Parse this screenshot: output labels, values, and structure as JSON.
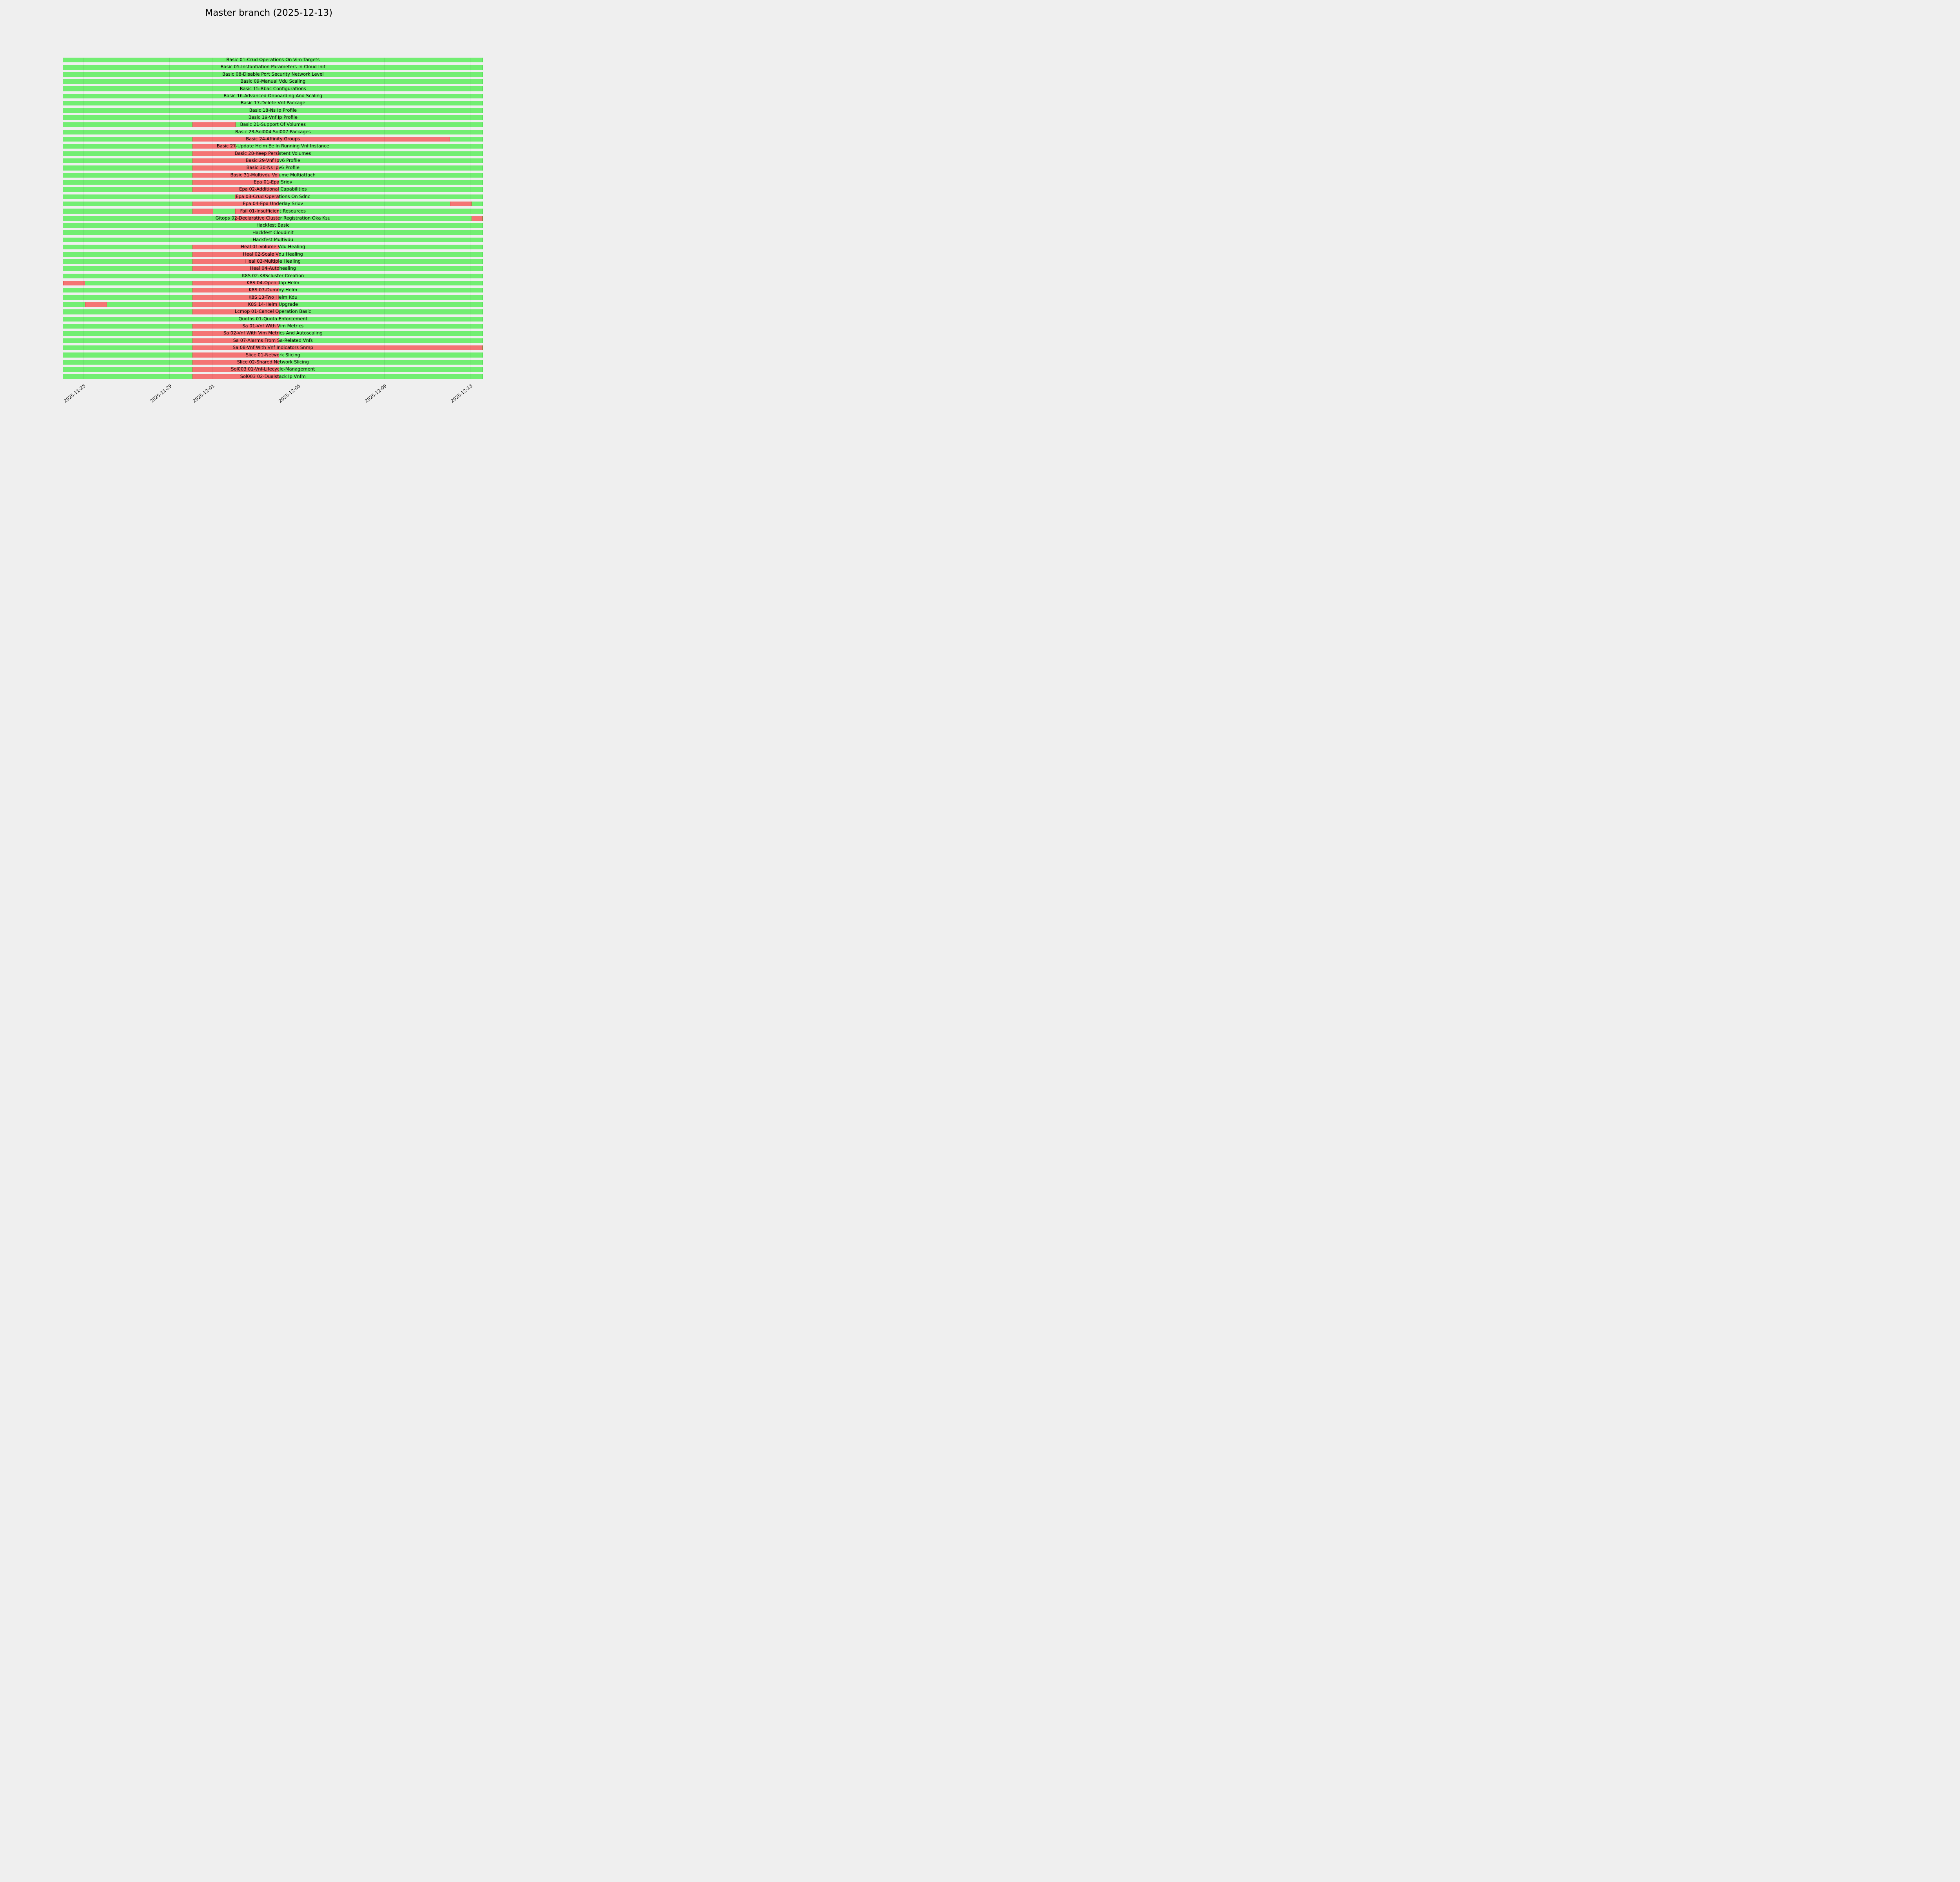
{
  "chart_data": {
    "type": "gantt",
    "title": "Master branch (2025-12-13)",
    "background": "#efefef",
    "legend": "none",
    "grid": "vertical ticks only",
    "colors": {
      "pass": "#72ee72",
      "fail": "#f47474"
    },
    "time_axis_note": "day offsets measured in days since 2025-11-24 00:00",
    "x_domain": [
      0.07,
      19.59
    ],
    "x_ticks": [
      {
        "day": 1,
        "label": "2025-11-25"
      },
      {
        "day": 5,
        "label": "2025-11-29"
      },
      {
        "day": 7,
        "label": "2025-12-01"
      },
      {
        "day": 11,
        "label": "2025-12-05"
      },
      {
        "day": 15,
        "label": "2025-12-09"
      },
      {
        "day": 19,
        "label": "2025-12-13"
      }
    ],
    "rows": [
      {
        "label": "Basic 01-Crud Operations On Vim Targets",
        "fail": []
      },
      {
        "label": "Basic 05-Instantiation Parameters In Cloud Init",
        "fail": []
      },
      {
        "label": "Basic 08-Disable Port Security Network Level",
        "fail": []
      },
      {
        "label": "Basic 09-Manual Vdu Scaling",
        "fail": []
      },
      {
        "label": "Basic 15-Rbac Configurations",
        "fail": []
      },
      {
        "label": "Basic 16-Advanced Onboarding And Scaling",
        "fail": []
      },
      {
        "label": "Basic 17-Delete Vnf Package",
        "fail": []
      },
      {
        "label": "Basic 18-Ns Ip Profile",
        "fail": []
      },
      {
        "label": "Basic 19-Vnf Ip Profile",
        "fail": []
      },
      {
        "label": "Basic 21-Support Of Volumes",
        "fail": [
          [
            6.09,
            8.09
          ]
        ]
      },
      {
        "label": "Basic 23-Sol004 Sol007 Packages",
        "fail": []
      },
      {
        "label": "Basic 24-Affinity Groups",
        "fail": [
          [
            6.09,
            18.07
          ]
        ]
      },
      {
        "label": "Basic 27-Update Helm Ee In Running Vnf Instance",
        "fail": [
          [
            6.09,
            8.09
          ]
        ]
      },
      {
        "label": "Basic 28-Keep Persistent Volumes",
        "fail": [
          [
            6.09,
            10.11
          ]
        ]
      },
      {
        "label": "Basic 29-Vnf Ipv6 Profile",
        "fail": [
          [
            6.09,
            10.11
          ]
        ]
      },
      {
        "label": "Basic 30-Ns Ipv6 Profile",
        "fail": [
          [
            6.09,
            10.11
          ]
        ]
      },
      {
        "label": "Basic 31-Multivdu Volume Multiattach",
        "fail": [
          [
            6.09,
            10.11
          ]
        ]
      },
      {
        "label": "Epa 01-Epa Sriov",
        "fail": [
          [
            6.09,
            10.11
          ]
        ]
      },
      {
        "label": "Epa 02-Additional Capabilities",
        "fail": [
          [
            6.09,
            10.11
          ]
        ]
      },
      {
        "label": "Epa 03-Crud Operations On Sdnc",
        "fail": [
          [
            8.08,
            10.11
          ]
        ]
      },
      {
        "label": "Epa 04-Epa Underlay Sriov",
        "fail": [
          [
            6.09,
            10.11
          ],
          [
            18.07,
            19.08
          ]
        ]
      },
      {
        "label": "Fail 01-Insufficient Resources",
        "fail": [
          [
            6.09,
            7.05
          ],
          [
            8.08,
            10.11
          ]
        ]
      },
      {
        "label": "Gitops 02-Declarative Cluster Registration Oka Ksu",
        "fail": [
          [
            8.08,
            10.11
          ],
          [
            19.08,
            19.59
          ]
        ]
      },
      {
        "label": "Hackfest Basic",
        "fail": []
      },
      {
        "label": "Hackfest Cloudinit",
        "fail": []
      },
      {
        "label": "Hackfest Multivdu",
        "fail": []
      },
      {
        "label": "Heal 01-Volume Vdu Healing",
        "fail": [
          [
            6.09,
            10.11
          ]
        ]
      },
      {
        "label": "Heal 02-Scale Vdu Healing",
        "fail": [
          [
            6.09,
            10.11
          ]
        ]
      },
      {
        "label": "Heal 03-Multiple Healing",
        "fail": [
          [
            6.09,
            10.11
          ]
        ]
      },
      {
        "label": "Heal 04-Autohealing",
        "fail": [
          [
            6.09,
            10.11
          ]
        ]
      },
      {
        "label": "K8S 02-K8Scluster Creation",
        "fail": []
      },
      {
        "label": "K8S 04-Openldap Helm",
        "fail": [
          [
            0.07,
            1.08
          ],
          [
            6.09,
            10.11
          ]
        ]
      },
      {
        "label": "K8S 07-Dummy Helm",
        "fail": [
          [
            6.09,
            10.11
          ]
        ]
      },
      {
        "label": "K8S 13-Two Helm Kdu",
        "fail": [
          [
            6.09,
            10.11
          ]
        ]
      },
      {
        "label": "K8S 14-Helm Upgrade",
        "fail": [
          [
            1.08,
            2.1
          ],
          [
            6.09,
            10.11
          ]
        ]
      },
      {
        "label": "Lcmop 01-Cancel Operation Basic",
        "fail": [
          [
            6.09,
            10.11
          ]
        ]
      },
      {
        "label": "Quotas 01-Quota Enforcement",
        "fail": []
      },
      {
        "label": "Sa 01-Vnf With Vim Metrics",
        "fail": [
          [
            6.09,
            10.11
          ]
        ]
      },
      {
        "label": "Sa 02-Vnf With Vim Metrics And Autoscaling",
        "fail": [
          [
            6.09,
            10.11
          ]
        ]
      },
      {
        "label": "Sa 07-Alarms From Sa-Related Vnfs",
        "fail": [
          [
            6.09,
            10.11
          ]
        ]
      },
      {
        "label": "Sa 08-Vnf With Vnf Indicators Snmp",
        "fail": [
          [
            6.09,
            19.59
          ]
        ]
      },
      {
        "label": "Slice 01-Network Slicing",
        "fail": [
          [
            6.09,
            10.11
          ]
        ]
      },
      {
        "label": "Slice 02-Shared Network Slicing",
        "fail": [
          [
            6.09,
            10.11
          ]
        ]
      },
      {
        "label": "Sol003 01-Vnf-Lifecycle-Management",
        "fail": [
          [
            6.09,
            10.11
          ]
        ]
      },
      {
        "label": "Sol003 02-Dualstack Ip Vnfm",
        "fail": [
          [
            6.09,
            10.11
          ]
        ]
      }
    ]
  }
}
